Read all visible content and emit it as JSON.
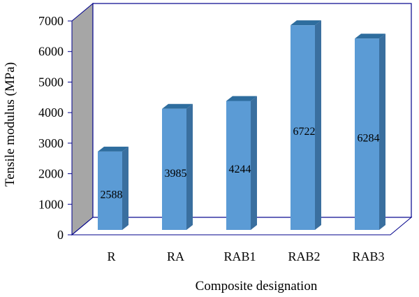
{
  "chart_data": {
    "type": "bar",
    "style": "3d-column",
    "categories": [
      "R",
      "RA",
      "RAB1",
      "RAB2",
      "RAB3"
    ],
    "values": [
      2588,
      3985,
      4244,
      6722,
      6284
    ],
    "data_labels": [
      "2588",
      "3985",
      "4244",
      "6722",
      "6284"
    ],
    "xlabel": "Composite designation",
    "ylabel": "Tensile modulus (MPa)",
    "ylim": [
      0,
      7000
    ],
    "yticks": [
      0,
      1000,
      2000,
      3000,
      4000,
      5000,
      6000,
      7000
    ],
    "ytick_labels": [
      "0",
      "1000",
      "2000",
      "3000",
      "4000",
      "5000",
      "6000",
      "7000"
    ],
    "grid": false,
    "legend": "none",
    "colors": {
      "bar_front": "#5b9bd5",
      "bar_top": "#2e6d9e",
      "bar_side": "#3a6f9f",
      "side_wall": "#a6a6a6",
      "frame": "#00008b"
    }
  }
}
